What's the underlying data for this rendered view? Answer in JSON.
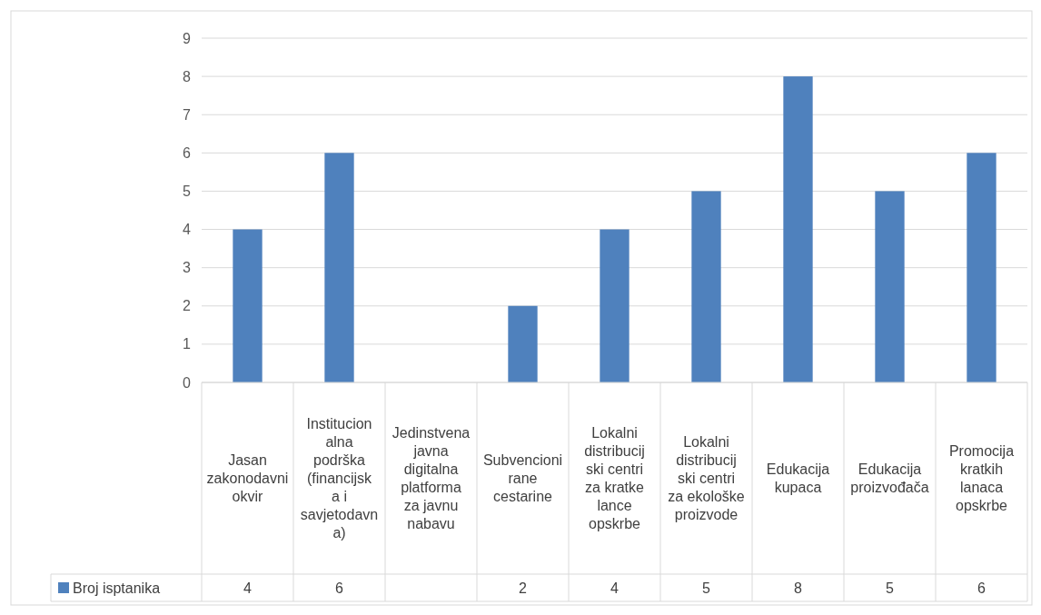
{
  "chart_data": {
    "type": "bar",
    "categories": [
      "Jasan zakonodavni okvir",
      "Institucionalna podrška (financijska i savjetodavna)",
      "Jedinstvena javna digitalna platforma za javnu nabavu",
      "Subvencionirane cestarine",
      "Lokalni distribucijski centri za kratke lance opskrbe",
      "Lokalni distribucijski centri za ekološke proizvode",
      "Edukacija kupaca",
      "Edukacija proizvođača",
      "Promocija kratkih lanaca opskrbe"
    ],
    "series": [
      {
        "name": "Broj isptanika",
        "color": "#4f81bd",
        "values": [
          4,
          6,
          null,
          2,
          4,
          5,
          8,
          5,
          6
        ]
      }
    ],
    "ylim": [
      0,
      9
    ],
    "yticks": [
      0,
      1,
      2,
      3,
      4,
      5,
      6,
      7,
      8,
      9
    ],
    "grid": "y",
    "legend": "bottom",
    "data_labels": true
  }
}
